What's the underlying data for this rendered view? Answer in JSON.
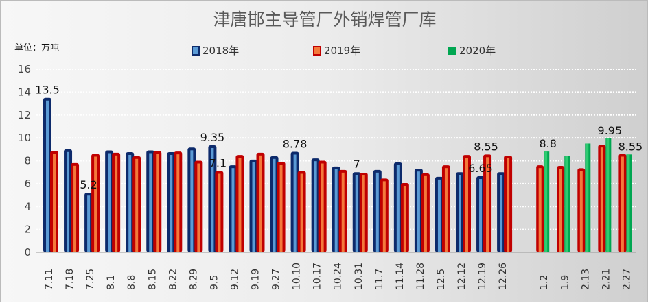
{
  "chart_data": {
    "type": "bar",
    "title": "津唐邯主导管厂外销焊管厂库",
    "ylabel": "单位：万吨",
    "ylim": [
      0,
      16
    ],
    "yticks": [
      0,
      2,
      4,
      6,
      8,
      10,
      12,
      14,
      16
    ],
    "grid": true,
    "legend_position": "top",
    "categories": [
      "7.11",
      "7.18",
      "7.25",
      "8.1",
      "8.8",
      "8.15",
      "8.22",
      "8.29",
      "9.5",
      "9.12",
      "9.19",
      "9.27",
      "10.10",
      "10.17",
      "10.24",
      "10.31",
      "11.7",
      "11.14",
      "11.28",
      "12.5",
      "12.12",
      "12.19",
      "12.26",
      "",
      "1.2",
      "1.9",
      "2.13",
      "2.21",
      "2.27"
    ],
    "series": [
      {
        "name": "2018年",
        "color": "#0d2a6b",
        "inner": "#5b9bd5",
        "values": [
          13.5,
          9.0,
          5.2,
          8.9,
          8.75,
          8.9,
          8.75,
          9.15,
          9.35,
          7.6,
          8.1,
          8.4,
          8.78,
          8.2,
          7.5,
          7.0,
          7.2,
          7.85,
          7.3,
          6.6,
          7.0,
          6.65,
          7.0,
          null,
          null,
          null,
          null,
          null,
          null
        ]
      },
      {
        "name": "2019年",
        "color": "#c00000",
        "inner": "#f4793b",
        "values": [
          8.85,
          7.8,
          8.6,
          8.7,
          8.4,
          8.85,
          8.8,
          8.0,
          7.1,
          8.5,
          8.7,
          7.9,
          7.1,
          8.0,
          7.2,
          6.95,
          6.45,
          6.05,
          6.9,
          7.6,
          8.5,
          8.55,
          8.45,
          null,
          7.6,
          7.55,
          7.35,
          9.4,
          8.6
        ]
      },
      {
        "name": "2020年",
        "color": "#00a651",
        "inner": "#2ecc71",
        "values": [
          null,
          null,
          null,
          null,
          null,
          null,
          null,
          null,
          null,
          null,
          null,
          null,
          null,
          null,
          null,
          null,
          null,
          null,
          null,
          null,
          null,
          null,
          null,
          null,
          8.8,
          8.4,
          9.5,
          9.95,
          8.55
        ]
      }
    ],
    "data_labels": [
      {
        "series": 0,
        "index": 0,
        "text": "13.5"
      },
      {
        "series": 0,
        "index": 2,
        "text": "5.2"
      },
      {
        "series": 0,
        "index": 8,
        "text": "9.35"
      },
      {
        "series": 1,
        "index": 8,
        "text": "7.1"
      },
      {
        "series": 0,
        "index": 12,
        "text": "8.78"
      },
      {
        "series": 0,
        "index": 15,
        "text": "7"
      },
      {
        "series": 0,
        "index": 21,
        "text": "6.65"
      },
      {
        "series": 1,
        "index": 21,
        "text": "8.55"
      },
      {
        "series": 2,
        "index": 24,
        "text": "8.8"
      },
      {
        "series": 2,
        "index": 27,
        "text": "9.95"
      },
      {
        "series": 2,
        "index": 28,
        "text": "8.55"
      }
    ]
  }
}
